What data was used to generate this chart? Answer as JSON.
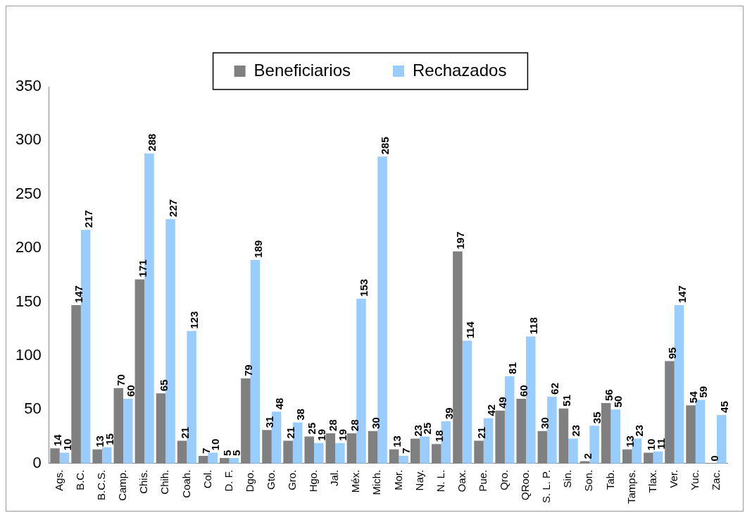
{
  "chart_data": {
    "type": "bar",
    "categories": [
      "Ags.",
      "B.C.",
      "B.C.S.",
      "Camp.",
      "Chis.",
      "Chih.",
      "Coah.",
      "Col.",
      "D. F.",
      "Dgo.",
      "Gto.",
      "Gro.",
      "Hgo.",
      "Jal.",
      "Méx.",
      "Mich.",
      "Mor.",
      "Nay.",
      "N. L.",
      "Oax.",
      "Pue.",
      "Qro.",
      "QRoo.",
      "S. L. P.",
      "Sin.",
      "Son.",
      "Tab.",
      "Tamps.",
      "Tlax.",
      "Ver.",
      "Yuc.",
      "Zac."
    ],
    "series": [
      {
        "name": "Beneficiarios",
        "color": "#808080",
        "values": [
          14,
          147,
          13,
          70,
          171,
          65,
          21,
          7,
          5,
          79,
          31,
          21,
          25,
          28,
          28,
          30,
          13,
          23,
          18,
          197,
          21,
          49,
          60,
          30,
          51,
          2,
          56,
          13,
          10,
          95,
          54,
          0
        ]
      },
      {
        "name": "Rechazados",
        "color": "#99ccff",
        "values": [
          10,
          217,
          15,
          60,
          288,
          227,
          123,
          10,
          5,
          189,
          48,
          38,
          19,
          19,
          153,
          285,
          7,
          25,
          39,
          114,
          42,
          81,
          118,
          62,
          23,
          35,
          50,
          23,
          11,
          147,
          59,
          45
        ]
      }
    ],
    "ylim": [
      0,
      350
    ],
    "yticks": [
      0,
      50,
      100,
      150,
      200,
      250,
      300,
      350
    ],
    "grid": false,
    "legend": "top",
    "data_labels": true
  }
}
